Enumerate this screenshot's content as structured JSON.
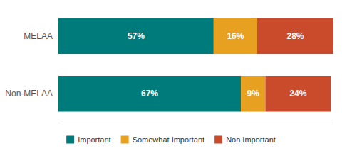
{
  "chart_data": {
    "type": "bar",
    "orientation": "horizontal",
    "stacked": true,
    "categories": [
      "MELAA",
      "Non-MELAA"
    ],
    "series": [
      {
        "name": "Important",
        "color": "#007b7b",
        "values": [
          57,
          67
        ],
        "value_labels": [
          "57%",
          "67%"
        ]
      },
      {
        "name": "Somewhat Important",
        "color": "#E8A020",
        "values": [
          16,
          9
        ],
        "value_labels": [
          "16%",
          "9%"
        ]
      },
      {
        "name": "Non Important",
        "color": "#C94B2C",
        "values": [
          28,
          24
        ],
        "value_labels": [
          "28%",
          "24%"
        ]
      }
    ],
    "xlim": [
      0,
      101
    ],
    "data_labels": true,
    "tick_labels": "y",
    "legend": "bottom",
    "grid": false
  }
}
